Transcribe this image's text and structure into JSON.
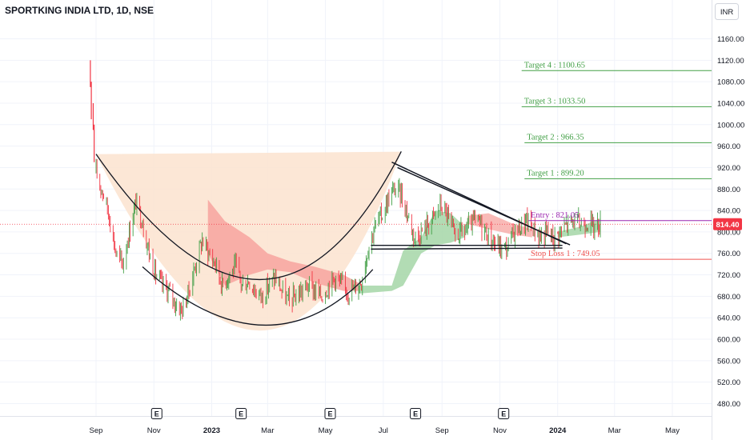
{
  "header": {
    "title": "SPORTKING INDIA LTD, 1D, NSE",
    "currency_button": "INR"
  },
  "colors": {
    "target": "#43a047",
    "entry": "#9c27b0",
    "stop": "#ef5350",
    "price_badge": "#f23645",
    "cup_fill": "#fbe3cf",
    "cloud_green": "#a5d6a7",
    "cloud_red": "#f7a39f"
  },
  "chart_data": {
    "type": "candlestick",
    "title": "SPORTKING INDIA LTD, 1D, NSE",
    "x_range": [
      "2022-08-20",
      "2024-05-31"
    ],
    "ylim": [
      460,
      1180
    ],
    "y_ticks": [
      480,
      520,
      560,
      600,
      640,
      680,
      720,
      760,
      800,
      840,
      880,
      920,
      960,
      1000,
      1040,
      1080,
      1120,
      1160
    ],
    "y_tick_labels": [
      "480.00",
      "520.00",
      "560.00",
      "600.00",
      "640.00",
      "680.00",
      "720.00",
      "760.00",
      "800.00",
      "840.00",
      "880.00",
      "920.00",
      "960.00",
      "1000.00",
      "1040.00",
      "1080.00",
      "1120.00",
      "1160.00"
    ],
    "x_ticks": [
      {
        "date": "2022-09-01",
        "label": "Sep",
        "bold": false
      },
      {
        "date": "2022-11-01",
        "label": "Nov",
        "bold": false
      },
      {
        "date": "2023-01-01",
        "label": "2023",
        "bold": true
      },
      {
        "date": "2023-03-01",
        "label": "Mar",
        "bold": false
      },
      {
        "date": "2023-05-01",
        "label": "May",
        "bold": false
      },
      {
        "date": "2023-07-01",
        "label": "Jul",
        "bold": false
      },
      {
        "date": "2023-09-01",
        "label": "Sep",
        "bold": false
      },
      {
        "date": "2023-11-01",
        "label": "Nov",
        "bold": false
      },
      {
        "date": "2024-01-01",
        "label": "2024",
        "bold": true
      },
      {
        "date": "2024-03-01",
        "label": "Mar",
        "bold": false
      },
      {
        "date": "2024-05-01",
        "label": "May",
        "bold": false
      }
    ],
    "earnings_events": [
      {
        "date": "2022-11-04",
        "label": "E"
      },
      {
        "date": "2023-02-01",
        "label": "E"
      },
      {
        "date": "2023-05-06",
        "label": "E"
      },
      {
        "date": "2023-08-04",
        "label": "E"
      },
      {
        "date": "2023-11-05",
        "label": "E"
      }
    ],
    "last_price": {
      "value": 814.4,
      "label": "814.40"
    },
    "levels": [
      {
        "label": "Target 4 : 1100.65",
        "value": 1100.65,
        "kind": "target",
        "start": "2023-11-24"
      },
      {
        "label": "Target 3 : 1033.50",
        "value": 1033.5,
        "kind": "target",
        "start": "2023-11-24"
      },
      {
        "label": "Target 2 : 966.35",
        "value": 966.35,
        "kind": "target",
        "start": "2023-11-27"
      },
      {
        "label": "Target 1 : 899.20",
        "value": 899.2,
        "kind": "target",
        "start": "2023-11-27"
      },
      {
        "label": "Entry : 821.05",
        "value": 821.05,
        "kind": "entry",
        "start": "2023-12-01"
      },
      {
        "label": "Stop Loss 1 : 749.05",
        "value": 749.05,
        "kind": "stop",
        "start": "2023-12-01"
      }
    ],
    "price_path": [
      [
        "2022-09-01",
        910
      ],
      [
        "2022-09-08",
        875
      ],
      [
        "2022-09-15",
        830
      ],
      [
        "2022-09-22",
        760
      ],
      [
        "2022-09-29",
        740
      ],
      [
        "2022-10-06",
        800
      ],
      [
        "2022-10-13",
        855
      ],
      [
        "2022-10-20",
        820
      ],
      [
        "2022-10-27",
        760
      ],
      [
        "2022-11-03",
        720
      ],
      [
        "2022-11-10",
        700
      ],
      [
        "2022-11-17",
        690
      ],
      [
        "2022-11-24",
        665
      ],
      [
        "2022-12-01",
        655
      ],
      [
        "2022-12-08",
        690
      ],
      [
        "2022-12-15",
        740
      ],
      [
        "2022-12-22",
        785
      ],
      [
        "2022-12-29",
        760
      ],
      [
        "2023-01-05",
        740
      ],
      [
        "2023-01-12",
        700
      ],
      [
        "2023-01-19",
        720
      ],
      [
        "2023-01-26",
        735
      ],
      [
        "2023-02-02",
        700
      ],
      [
        "2023-02-09",
        710
      ],
      [
        "2023-02-16",
        690
      ],
      [
        "2023-02-23",
        680
      ],
      [
        "2023-03-02",
        700
      ],
      [
        "2023-03-09",
        715
      ],
      [
        "2023-03-16",
        690
      ],
      [
        "2023-03-23",
        670
      ],
      [
        "2023-03-30",
        680
      ],
      [
        "2023-04-06",
        690
      ],
      [
        "2023-04-13",
        700
      ],
      [
        "2023-04-20",
        690
      ],
      [
        "2023-04-27",
        680
      ],
      [
        "2023-05-04",
        700
      ],
      [
        "2023-05-11",
        715
      ],
      [
        "2023-05-18",
        700
      ],
      [
        "2023-05-25",
        690
      ],
      [
        "2023-06-01",
        695
      ],
      [
        "2023-06-08",
        710
      ],
      [
        "2023-06-15",
        770
      ],
      [
        "2023-06-22",
        810
      ],
      [
        "2023-06-29",
        830
      ],
      [
        "2023-07-06",
        860
      ],
      [
        "2023-07-13",
        880
      ],
      [
        "2023-07-20",
        870
      ],
      [
        "2023-07-27",
        830
      ],
      [
        "2023-08-03",
        790
      ],
      [
        "2023-08-10",
        800
      ],
      [
        "2023-08-17",
        815
      ],
      [
        "2023-08-24",
        830
      ],
      [
        "2023-08-31",
        850
      ],
      [
        "2023-09-07",
        830
      ],
      [
        "2023-09-14",
        790
      ],
      [
        "2023-09-21",
        800
      ],
      [
        "2023-09-28",
        805
      ],
      [
        "2023-10-05",
        820
      ],
      [
        "2023-10-12",
        815
      ],
      [
        "2023-10-19",
        795
      ],
      [
        "2023-10-26",
        780
      ],
      [
        "2023-11-02",
        770
      ],
      [
        "2023-11-09",
        770
      ],
      [
        "2023-11-16",
        800
      ],
      [
        "2023-11-23",
        810
      ],
      [
        "2023-11-30",
        820
      ],
      [
        "2023-12-07",
        805
      ],
      [
        "2023-12-14",
        790
      ],
      [
        "2023-12-21",
        800
      ],
      [
        "2023-12-28",
        790
      ],
      [
        "2024-01-04",
        800
      ],
      [
        "2024-01-11",
        815
      ],
      [
        "2024-01-18",
        820
      ],
      [
        "2024-01-25",
        815
      ],
      [
        "2024-02-01",
        820
      ],
      [
        "2024-02-08",
        810
      ],
      [
        "2024-02-15",
        814.4
      ]
    ]
  }
}
